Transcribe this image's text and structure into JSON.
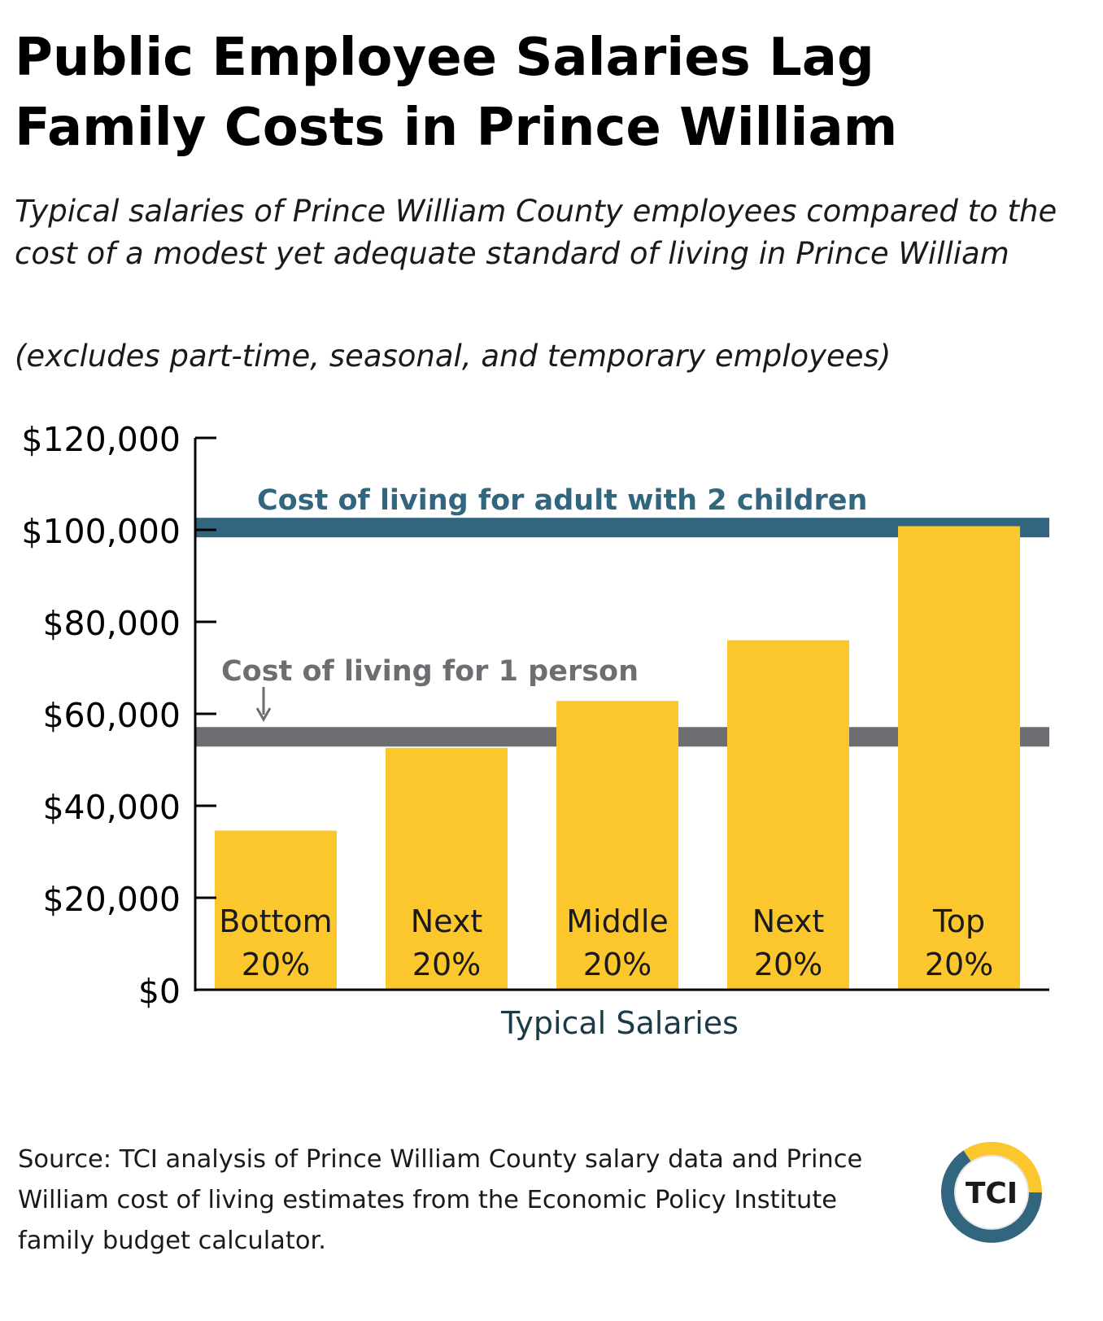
{
  "title_line1": "Public Employee Salaries Lag",
  "title_line2": "Family Costs in Prince William",
  "subtitle": "Typical salaries of Prince William County employees compared to the cost of a modest yet adequate standard of living in Prince William",
  "note": "(excludes part-time, seasonal, and temporary employees)",
  "source": "Source:  TCI analysis of Prince William County salary data and Prince William cost of living estimates from the Economic Policy Institute family budget calculator.",
  "logo_text": "TCI",
  "colors": {
    "bar": "#fcc72c",
    "family_line": "#32667f",
    "single_line": "#6d6e71",
    "axis": "#000000",
    "logo_yellow": "#fcc72c",
    "logo_blue": "#32667f"
  },
  "chart_data": {
    "type": "bar",
    "xlabel": "Typical Salaries",
    "ylabel": "",
    "ylim": [
      0,
      120000
    ],
    "y_ticks": [
      0,
      20000,
      40000,
      60000,
      80000,
      100000,
      120000
    ],
    "y_tick_labels": [
      "$0",
      "$20,000",
      "$40,000",
      "$60,000",
      "$80,000",
      "$100,000",
      "$120,000"
    ],
    "categories": [
      [
        "Bottom",
        "20%"
      ],
      [
        "Next",
        "20%"
      ],
      [
        "Middle",
        "20%"
      ],
      [
        "Next",
        "20%"
      ],
      [
        "Top",
        "20%"
      ]
    ],
    "values": [
      34600,
      52600,
      62800,
      76000,
      100800
    ],
    "reference_lines": [
      {
        "label": "Cost of living for adult with 2 children",
        "value": 100500
      },
      {
        "label": "Cost of living for 1 person",
        "value": 55000
      }
    ]
  }
}
